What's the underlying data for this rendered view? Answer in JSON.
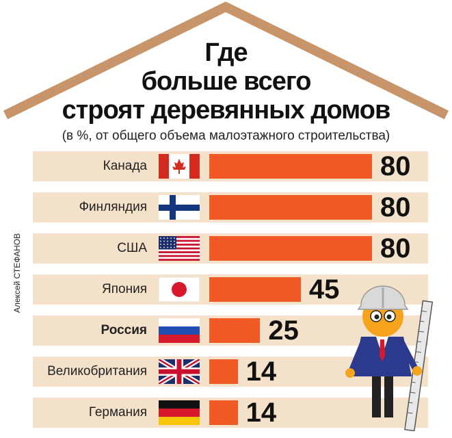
{
  "title_lines": [
    "Где",
    "больше всего",
    "строят деревянных домов"
  ],
  "subtitle": "(в %, от общего объема малоэтажного строительства)",
  "author": "Алексей СТЕФАНОВ",
  "colors": {
    "roof": "#c8956a",
    "row_bg": "#f3e2c9",
    "bar": "#f15a24"
  },
  "chart_data": {
    "type": "bar",
    "orientation": "horizontal",
    "categories": [
      "Канада",
      "Финляндия",
      "США",
      "Япония",
      "Россия",
      "Великобритания",
      "Германия"
    ],
    "values": [
      80,
      80,
      80,
      45,
      25,
      14,
      14
    ],
    "value_labels": [
      "80",
      "80",
      "80",
      "45",
      "25",
      "14",
      "14"
    ],
    "flags": [
      "canada-flag",
      "finland-flag",
      "usa-flag",
      "japan-flag",
      "russia-flag",
      "uk-flag",
      "germany-flag"
    ],
    "highlighted": "Россия",
    "title": "Где больше всего строят деревянных домов",
    "subtitle": "(в %, от общего объема малоэтажного строительства)",
    "xlim": [
      0,
      80
    ]
  }
}
